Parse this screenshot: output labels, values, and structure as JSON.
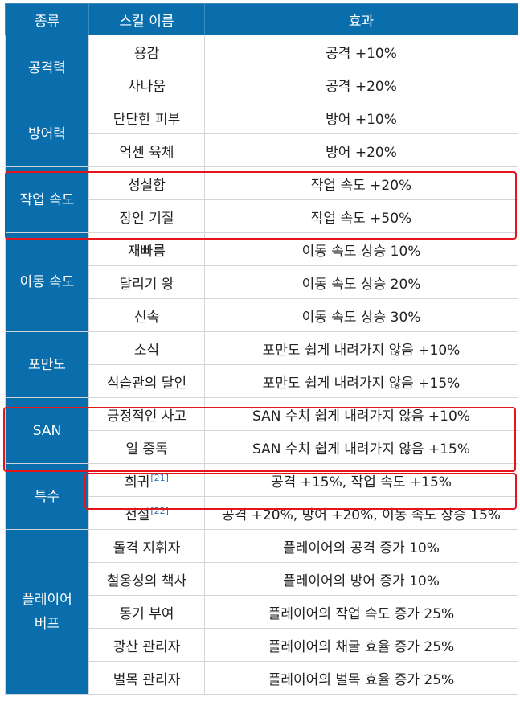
{
  "header": {
    "category": "종류",
    "skill_name": "스킬 이름",
    "effect": "효과"
  },
  "groups": [
    {
      "category": "공격력",
      "skills": [
        {
          "name": "용감",
          "effect": "공격 +10%"
        },
        {
          "name": "사나움",
          "effect": "공격 +20%"
        }
      ]
    },
    {
      "category": "방어력",
      "skills": [
        {
          "name": "단단한 피부",
          "effect": "방어 +10%"
        },
        {
          "name": "억센 육체",
          "effect": "방어 +20%"
        }
      ]
    },
    {
      "category": "작업 속도",
      "skills": [
        {
          "name": "성실함",
          "effect": "작업 속도 +20%"
        },
        {
          "name": "장인 기질",
          "effect": "작업 속도 +50%"
        }
      ]
    },
    {
      "category": "이동 속도",
      "skills": [
        {
          "name": "재빠름",
          "effect": "이동 속도 상승 10%"
        },
        {
          "name": "달리기 왕",
          "effect": "이동 속도 상승 20%"
        },
        {
          "name": "신속",
          "effect": "이동 속도 상승 30%"
        }
      ]
    },
    {
      "category": "포만도",
      "skills": [
        {
          "name": "소식",
          "effect": "포만도 쉽게 내려가지 않음 +10%"
        },
        {
          "name": "식습관의 달인",
          "effect": "포만도 쉽게 내려가지 않음 +15%"
        }
      ]
    },
    {
      "category": "SAN",
      "skills": [
        {
          "name": "긍정적인 사고",
          "effect": "SAN 수치 쉽게 내려가지 않음 +10%"
        },
        {
          "name": "일 중독",
          "effect": "SAN 수치 쉽게 내려가지 않음 +15%"
        }
      ]
    },
    {
      "category": "특수",
      "skills": [
        {
          "name": "희귀",
          "ref": "[21]",
          "effect": "공격 +15%, 작업 속도 +15%"
        },
        {
          "name": "전설",
          "ref": "[22]",
          "effect": "공격 +20%, 방어 +20%, 이동 속도 상승 15%"
        }
      ]
    },
    {
      "category_line1": "플레이어",
      "category_line2": "버프",
      "skills": [
        {
          "name": "돌격 지휘자",
          "effect": "플레이어의 공격 증가 10%"
        },
        {
          "name": "철옹성의 책사",
          "effect": "플레이어의 방어 증가 10%"
        },
        {
          "name": "동기 부여",
          "effect": "플레이어의 작업 속도 증가 25%"
        },
        {
          "name": "광산 관리자",
          "effect": "플레이어의 채굴 효율 증가 25%"
        },
        {
          "name": "벌목 관리자",
          "effect": "플레이어의 벌목 효율 증가 25%"
        }
      ]
    }
  ],
  "highlight_color": "#e4161c",
  "header_color": "#0a6eac"
}
